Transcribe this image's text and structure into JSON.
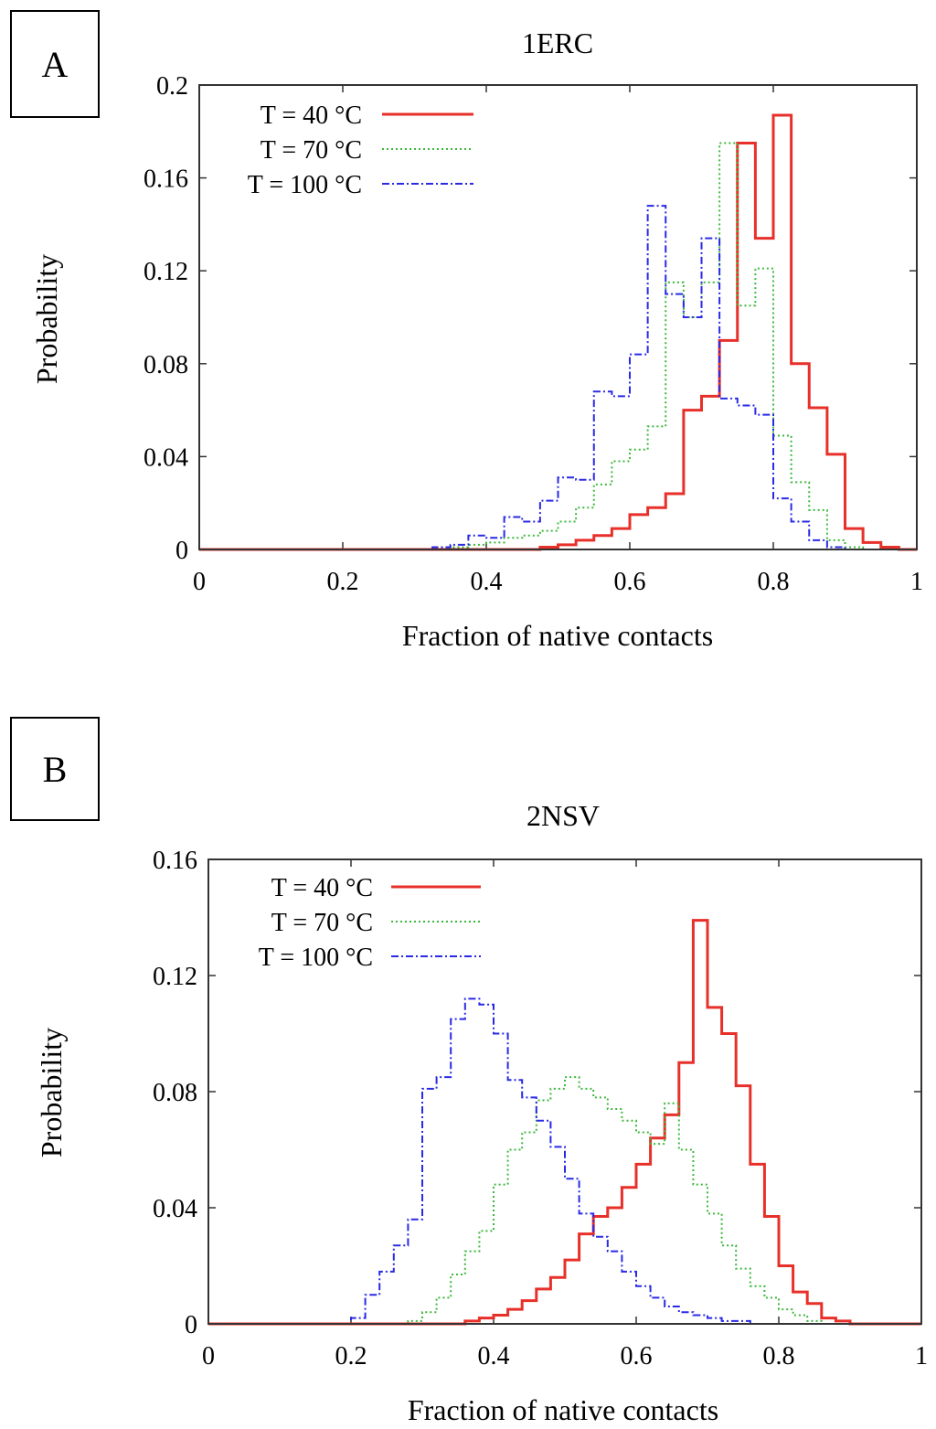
{
  "chart_data": [
    {
      "type": "line",
      "panel_label": "A",
      "title": "1ERC",
      "xlabel": "Fraction of native contacts",
      "ylabel": "Probability",
      "xlim": [
        0,
        1
      ],
      "ylim": [
        0,
        0.2
      ],
      "xticks": [
        "0",
        "0.2",
        "0.4",
        "0.6",
        "0.8",
        "1"
      ],
      "xtick_values": [
        0,
        0.2,
        0.4,
        0.6,
        0.8,
        1
      ],
      "yticks": [
        "0",
        "0.04",
        "0.08",
        "0.12",
        "0.16",
        "0.2"
      ],
      "ytick_values": [
        0,
        0.04,
        0.08,
        0.12,
        0.16,
        0.2
      ],
      "bin_edges": [
        0.325,
        0.35,
        0.375,
        0.4,
        0.425,
        0.45,
        0.475,
        0.5,
        0.525,
        0.55,
        0.575,
        0.6,
        0.625,
        0.65,
        0.675,
        0.7,
        0.725,
        0.75,
        0.775,
        0.8,
        0.825,
        0.85,
        0.875,
        0.9,
        0.925,
        0.95,
        0.975
      ],
      "legend_position": "top-left",
      "series": [
        {
          "name": "T = 40 °C",
          "color": "#e8302a",
          "style": "solid",
          "values": [
            0,
            0,
            0,
            0,
            0,
            0,
            0.001,
            0.002,
            0.004,
            0.006,
            0.009,
            0.015,
            0.018,
            0.024,
            0.06,
            0.066,
            0.09,
            0.175,
            0.134,
            0.187,
            0.08,
            0.061,
            0.041,
            0.009,
            0.003,
            0.001
          ]
        },
        {
          "name": "T = 70 °C",
          "color": "#3cb83c",
          "style": "dotted",
          "values": [
            0,
            0.001,
            0.002,
            0.003,
            0.005,
            0.006,
            0.008,
            0.012,
            0.018,
            0.028,
            0.038,
            0.043,
            0.053,
            0.115,
            0.1,
            0.115,
            0.175,
            0.105,
            0.121,
            0.049,
            0.029,
            0.017,
            0.004,
            0.001,
            0,
            0
          ]
        },
        {
          "name": "T = 100 °C",
          "color": "#2a2ae6",
          "style": "dashed",
          "values": [
            0.001,
            0.002,
            0.006,
            0.005,
            0.014,
            0.012,
            0.021,
            0.031,
            0.03,
            0.068,
            0.066,
            0.084,
            0.148,
            0.11,
            0.1,
            0.134,
            0.065,
            0.062,
            0.058,
            0.022,
            0.012,
            0.004,
            0.001,
            0,
            0,
            0
          ]
        }
      ]
    },
    {
      "type": "line",
      "panel_label": "B",
      "title": "2NSV",
      "xlabel": "Fraction of native contacts",
      "ylabel": "Probability",
      "xlim": [
        0,
        1
      ],
      "ylim": [
        0,
        0.16
      ],
      "xticks": [
        "0",
        "0.2",
        "0.4",
        "0.6",
        "0.8",
        "1"
      ],
      "xtick_values": [
        0,
        0.2,
        0.4,
        0.6,
        0.8,
        1
      ],
      "yticks": [
        "0",
        "0.04",
        "0.08",
        "0.12",
        "0.16"
      ],
      "ytick_values": [
        0,
        0.04,
        0.08,
        0.12,
        0.16
      ],
      "bin_edges": [
        0.2,
        0.22,
        0.24,
        0.26,
        0.28,
        0.3,
        0.32,
        0.34,
        0.36,
        0.38,
        0.4,
        0.42,
        0.44,
        0.46,
        0.48,
        0.5,
        0.52,
        0.54,
        0.56,
        0.58,
        0.6,
        0.62,
        0.64,
        0.66,
        0.68,
        0.7,
        0.72,
        0.74,
        0.76,
        0.78,
        0.8,
        0.82,
        0.84,
        0.86,
        0.88,
        0.9,
        0.92
      ],
      "legend_position": "top-left",
      "series": [
        {
          "name": "T = 40 °C",
          "color": "#e8302a",
          "style": "solid",
          "values": [
            0,
            0,
            0,
            0,
            0,
            0,
            0,
            0,
            0.001,
            0.002,
            0.003,
            0.005,
            0.008,
            0.012,
            0.016,
            0.022,
            0.031,
            0.037,
            0.04,
            0.047,
            0.055,
            0.064,
            0.072,
            0.09,
            0.139,
            0.109,
            0.1,
            0.082,
            0.055,
            0.037,
            0.02,
            0.011,
            0.007,
            0.002,
            0.001,
            0
          ]
        },
        {
          "name": "T = 70 °C",
          "color": "#3cb83c",
          "style": "dotted",
          "values": [
            0,
            0,
            0,
            0,
            0.001,
            0.004,
            0.009,
            0.017,
            0.025,
            0.032,
            0.048,
            0.06,
            0.066,
            0.077,
            0.081,
            0.085,
            0.081,
            0.078,
            0.074,
            0.07,
            0.066,
            0.062,
            0.076,
            0.06,
            0.048,
            0.038,
            0.027,
            0.019,
            0.013,
            0.009,
            0.005,
            0.003,
            0.001,
            0,
            0,
            0
          ]
        },
        {
          "name": "T = 100 °C",
          "color": "#2a2ae6",
          "style": "dashed",
          "values": [
            0.002,
            0.01,
            0.018,
            0.027,
            0.036,
            0.081,
            0.085,
            0.105,
            0.112,
            0.11,
            0.1,
            0.084,
            0.078,
            0.07,
            0.061,
            0.05,
            0.038,
            0.03,
            0.025,
            0.018,
            0.013,
            0.009,
            0.006,
            0.004,
            0.003,
            0.002,
            0.001,
            0.001,
            0,
            0,
            0,
            0,
            0,
            0,
            0,
            0
          ]
        }
      ]
    }
  ]
}
